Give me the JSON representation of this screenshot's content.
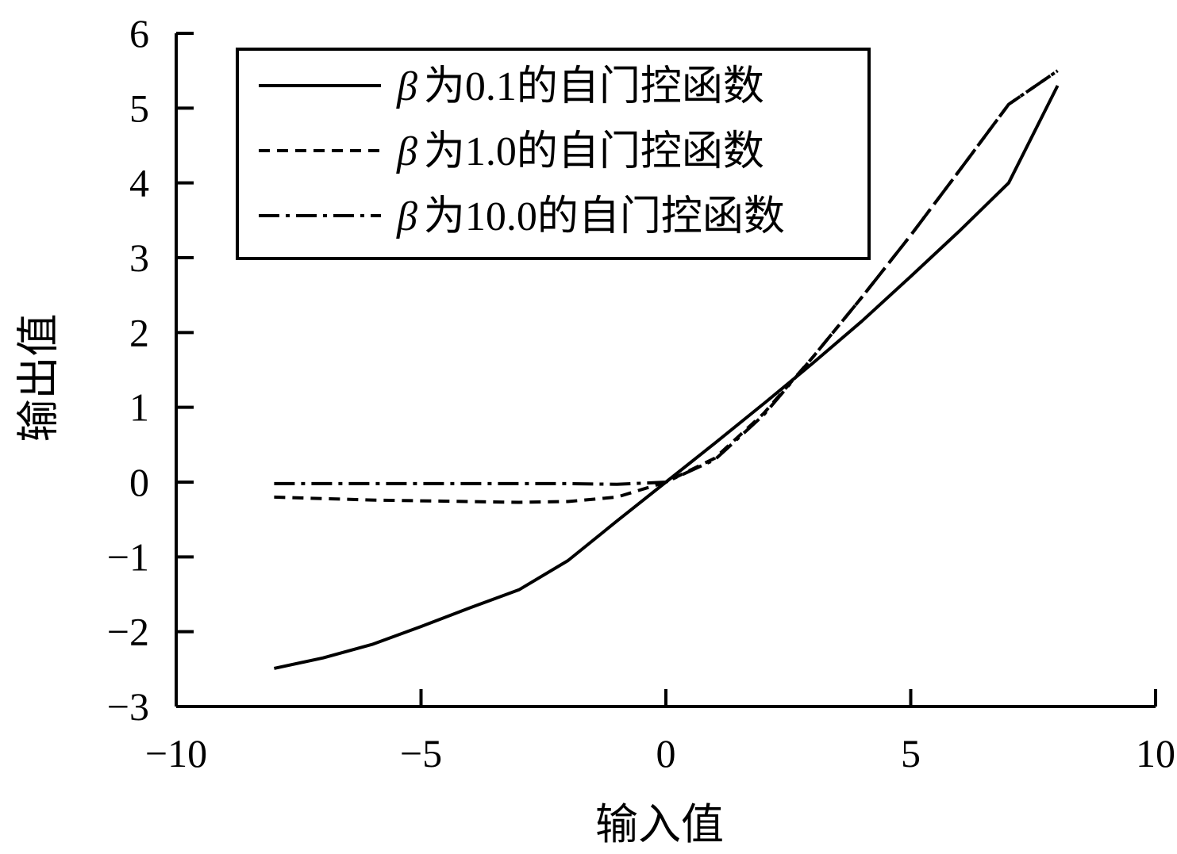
{
  "chart_data": {
    "type": "line",
    "title": "",
    "xlabel": "输入值",
    "ylabel": "输出值",
    "xlim": [
      -10,
      10
    ],
    "ylim": [
      -3,
      6
    ],
    "xticks": [
      -10,
      -5,
      0,
      5,
      10
    ],
    "xtick_labels": [
      "−10",
      "−5",
      "0",
      "5",
      "10"
    ],
    "yticks": [
      -3,
      -2,
      -1,
      0,
      1,
      2,
      3,
      4,
      5,
      6
    ],
    "ytick_labels": [
      "−3",
      "−2",
      "−1",
      "0",
      "1",
      "2",
      "3",
      "4",
      "5",
      "6"
    ],
    "grid": false,
    "legend_position": "top-left",
    "series": [
      {
        "name": "β为0.1的自门控函数",
        "legend_symbol": "β",
        "legend_text": "为0.1的自门控函数",
        "line_style": "solid",
        "color": "#000000",
        "x": [
          -8,
          -7,
          -6,
          -5,
          -4,
          -3,
          -2,
          -1,
          0,
          1,
          2,
          3,
          4,
          5,
          6,
          7,
          8
        ],
        "y": [
          -2.49,
          -2.35,
          -2.17,
          -1.93,
          -1.68,
          -1.44,
          -1.05,
          -0.52,
          0.0,
          0.52,
          1.05,
          1.59,
          2.15,
          2.75,
          3.36,
          4.0,
          5.3
        ]
      },
      {
        "name": "β为1.0的自门控函数",
        "legend_symbol": "β",
        "legend_text": "为1.0的自门控函数",
        "line_style": "dashed",
        "color": "#000000",
        "x": [
          -8,
          -7,
          -6,
          -5,
          -4,
          -3,
          -2,
          -1,
          0,
          1,
          2,
          3,
          4,
          5,
          6,
          7,
          8
        ],
        "y": [
          -0.2,
          -0.22,
          -0.24,
          -0.25,
          -0.26,
          -0.27,
          -0.26,
          -0.2,
          0.0,
          0.32,
          0.92,
          1.67,
          2.47,
          3.3,
          4.17,
          5.05,
          5.5
        ]
      },
      {
        "name": "β为10.0的自门控函数",
        "legend_symbol": "β",
        "legend_text": "为10.0的自门控函数",
        "line_style": "dashdot",
        "color": "#000000",
        "x": [
          -8,
          -7,
          -6,
          -5,
          -4,
          -3,
          -2,
          -1,
          0,
          1,
          2,
          3,
          4,
          5,
          6,
          7,
          8
        ],
        "y": [
          -0.02,
          -0.02,
          -0.02,
          -0.02,
          -0.02,
          -0.02,
          -0.02,
          -0.03,
          0.0,
          0.3,
          0.9,
          1.67,
          2.47,
          3.3,
          4.17,
          5.05,
          5.5
        ]
      }
    ]
  }
}
